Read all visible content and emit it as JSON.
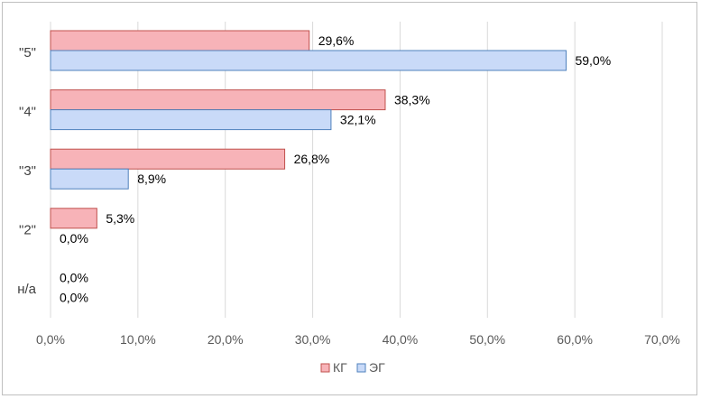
{
  "chart_data": {
    "type": "bar",
    "orientation": "horizontal",
    "categories": [
      "\"5\"",
      "\"4\"",
      "\"3\"",
      "\"2\"",
      "н/а"
    ],
    "series": [
      {
        "name": "КГ",
        "color": "#f7b3b8",
        "stroke": "#c0504d",
        "values": [
          29.6,
          38.3,
          26.8,
          5.3,
          0.0
        ],
        "labels": [
          "29,6%",
          "38,3%",
          "26,8%",
          "5,3%",
          "0,0%"
        ]
      },
      {
        "name": "ЭГ",
        "color": "#c9daf8",
        "stroke": "#4f81bd",
        "values": [
          59.0,
          32.1,
          8.9,
          0.0,
          0.0
        ],
        "labels": [
          "59,0%",
          "32,1%",
          "8,9%",
          "0,0%",
          "0,0%"
        ]
      }
    ],
    "xlim": [
      0,
      70
    ],
    "xticks": [
      "0,0%",
      "10,0%",
      "20,0%",
      "30,0%",
      "40,0%",
      "50,0%",
      "60,0%",
      "70,0%"
    ],
    "grid": true,
    "legend_position": "bottom",
    "title": "",
    "xlabel": "",
    "ylabel": ""
  }
}
